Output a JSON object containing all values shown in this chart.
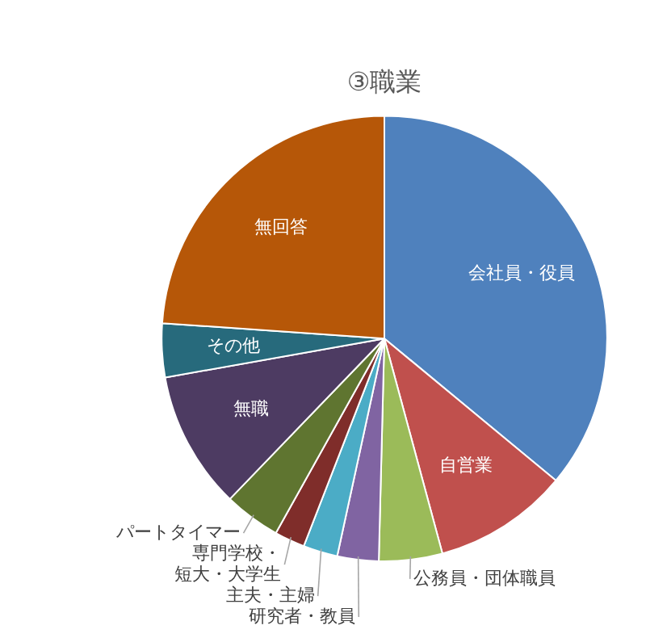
{
  "chart_data": {
    "type": "pie",
    "title": "③職業",
    "categories": [
      "会社員・役員",
      "自営業",
      "公務員・団体職員",
      "研究者・教員",
      "主夫・主婦",
      "専門学校・短大・大学生",
      "パートタイマー",
      "無職",
      "その他",
      "無回答"
    ],
    "values": [
      36,
      9.8,
      4.6,
      3,
      2.5,
      2.2,
      4.1,
      10,
      3.9,
      23.9
    ],
    "colors": [
      "#4f81bd",
      "#c0504d",
      "#9bbb59",
      "#8064a2",
      "#4bacc6",
      "#7f2d2a",
      "#5f7530",
      "#4d3b62",
      "#276a7c",
      "#b65708"
    ],
    "legend": false
  }
}
